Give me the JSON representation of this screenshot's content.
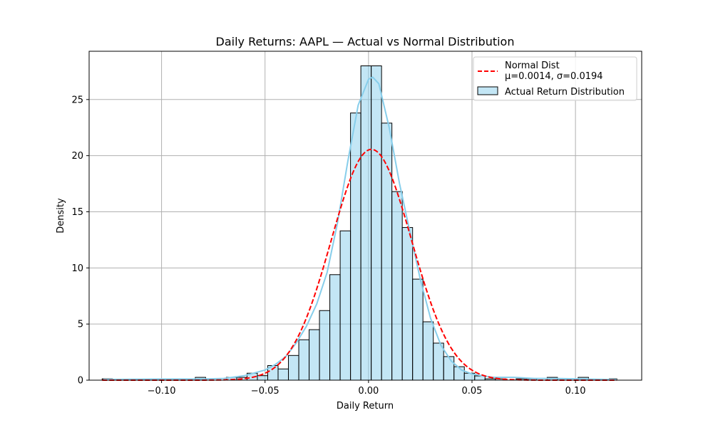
{
  "chart_data": {
    "type": "histogram",
    "title": "Daily Returns: AAPL — Actual vs Normal Distribution",
    "xlabel": "Daily Return",
    "ylabel": "Density",
    "xlim": [
      -0.135,
      0.132
    ],
    "ylim": [
      0,
      29.3
    ],
    "grid": true,
    "legend_position": "top-right",
    "x_ticks": [
      {
        "value": -0.1,
        "label": "−0.10"
      },
      {
        "value": -0.05,
        "label": "−0.05"
      },
      {
        "value": 0.0,
        "label": "0.00"
      },
      {
        "value": 0.05,
        "label": "0.05"
      },
      {
        "value": 0.1,
        "label": "0.10"
      }
    ],
    "y_ticks": [
      {
        "value": 0,
        "label": "0"
      },
      {
        "value": 5,
        "label": "5"
      },
      {
        "value": 10,
        "label": "10"
      },
      {
        "value": 15,
        "label": "15"
      },
      {
        "value": 20,
        "label": "20"
      },
      {
        "value": 25,
        "label": "25"
      }
    ],
    "histogram": {
      "name": "Actual Return Distribution",
      "color": "#87ceeb",
      "bin_edges": [
        -0.1287,
        -0.1237,
        -0.1187,
        -0.1137,
        -0.1087,
        -0.1037,
        -0.0987,
        -0.0937,
        -0.0887,
        -0.0837,
        -0.0787,
        -0.0737,
        -0.0687,
        -0.0637,
        -0.0587,
        -0.0537,
        -0.0487,
        -0.0437,
        -0.0387,
        -0.0337,
        -0.0287,
        -0.0237,
        -0.0187,
        -0.0137,
        -0.0087,
        -0.0037,
        0.0013,
        0.0063,
        0.0113,
        0.0163,
        0.0213,
        0.0263,
        0.0313,
        0.0363,
        0.0413,
        0.0463,
        0.0513,
        0.0563,
        0.0613,
        0.0663,
        0.0713,
        0.0763,
        0.0813,
        0.0863,
        0.0913,
        0.0963,
        0.1013,
        0.1063,
        0.1113,
        0.1163,
        0.12
      ],
      "densities": [
        0.12,
        0.0,
        0.0,
        0.0,
        0.0,
        0.12,
        0.0,
        0.0,
        0.0,
        0.25,
        0.0,
        0.0,
        0.25,
        0.25,
        0.62,
        0.4,
        1.3,
        1.0,
        2.2,
        3.6,
        4.5,
        6.2,
        9.4,
        13.3,
        23.8,
        28.0,
        28.0,
        22.9,
        16.8,
        13.6,
        9.0,
        5.2,
        3.3,
        2.1,
        1.2,
        0.62,
        0.38,
        0.12,
        0.12,
        0.0,
        0.12,
        0.12,
        0.0,
        0.25,
        0.12,
        0.0,
        0.25,
        0.0,
        0.0,
        0.12
      ]
    },
    "kde": {
      "color": "#87ceeb",
      "x": [
        -0.128,
        -0.1,
        -0.08,
        -0.07,
        -0.06,
        -0.05,
        -0.045,
        -0.04,
        -0.035,
        -0.03,
        -0.025,
        -0.02,
        -0.015,
        -0.01,
        -0.005,
        0.0,
        0.002,
        0.005,
        0.01,
        0.015,
        0.02,
        0.025,
        0.03,
        0.035,
        0.04,
        0.045,
        0.05,
        0.06,
        0.07,
        0.08,
        0.09,
        0.1,
        0.12
      ],
      "y": [
        0.06,
        0.1,
        0.1,
        0.15,
        0.4,
        0.9,
        1.4,
        2.1,
        3.3,
        4.8,
        6.8,
        9.6,
        14.0,
        19.5,
        24.5,
        26.8,
        27.0,
        26.4,
        22.5,
        17.5,
        13.2,
        9.0,
        5.5,
        3.1,
        1.7,
        0.9,
        0.55,
        0.25,
        0.25,
        0.15,
        0.15,
        0.12,
        0.05
      ]
    },
    "normal": {
      "name": "Normal Dist\nμ=0.0014, σ=0.0194",
      "label_line1": "Normal Dist",
      "label_line2": "μ=0.0014, σ=0.0194",
      "mu": 0.0014,
      "sigma": 0.0194,
      "color": "#ff0000"
    }
  }
}
